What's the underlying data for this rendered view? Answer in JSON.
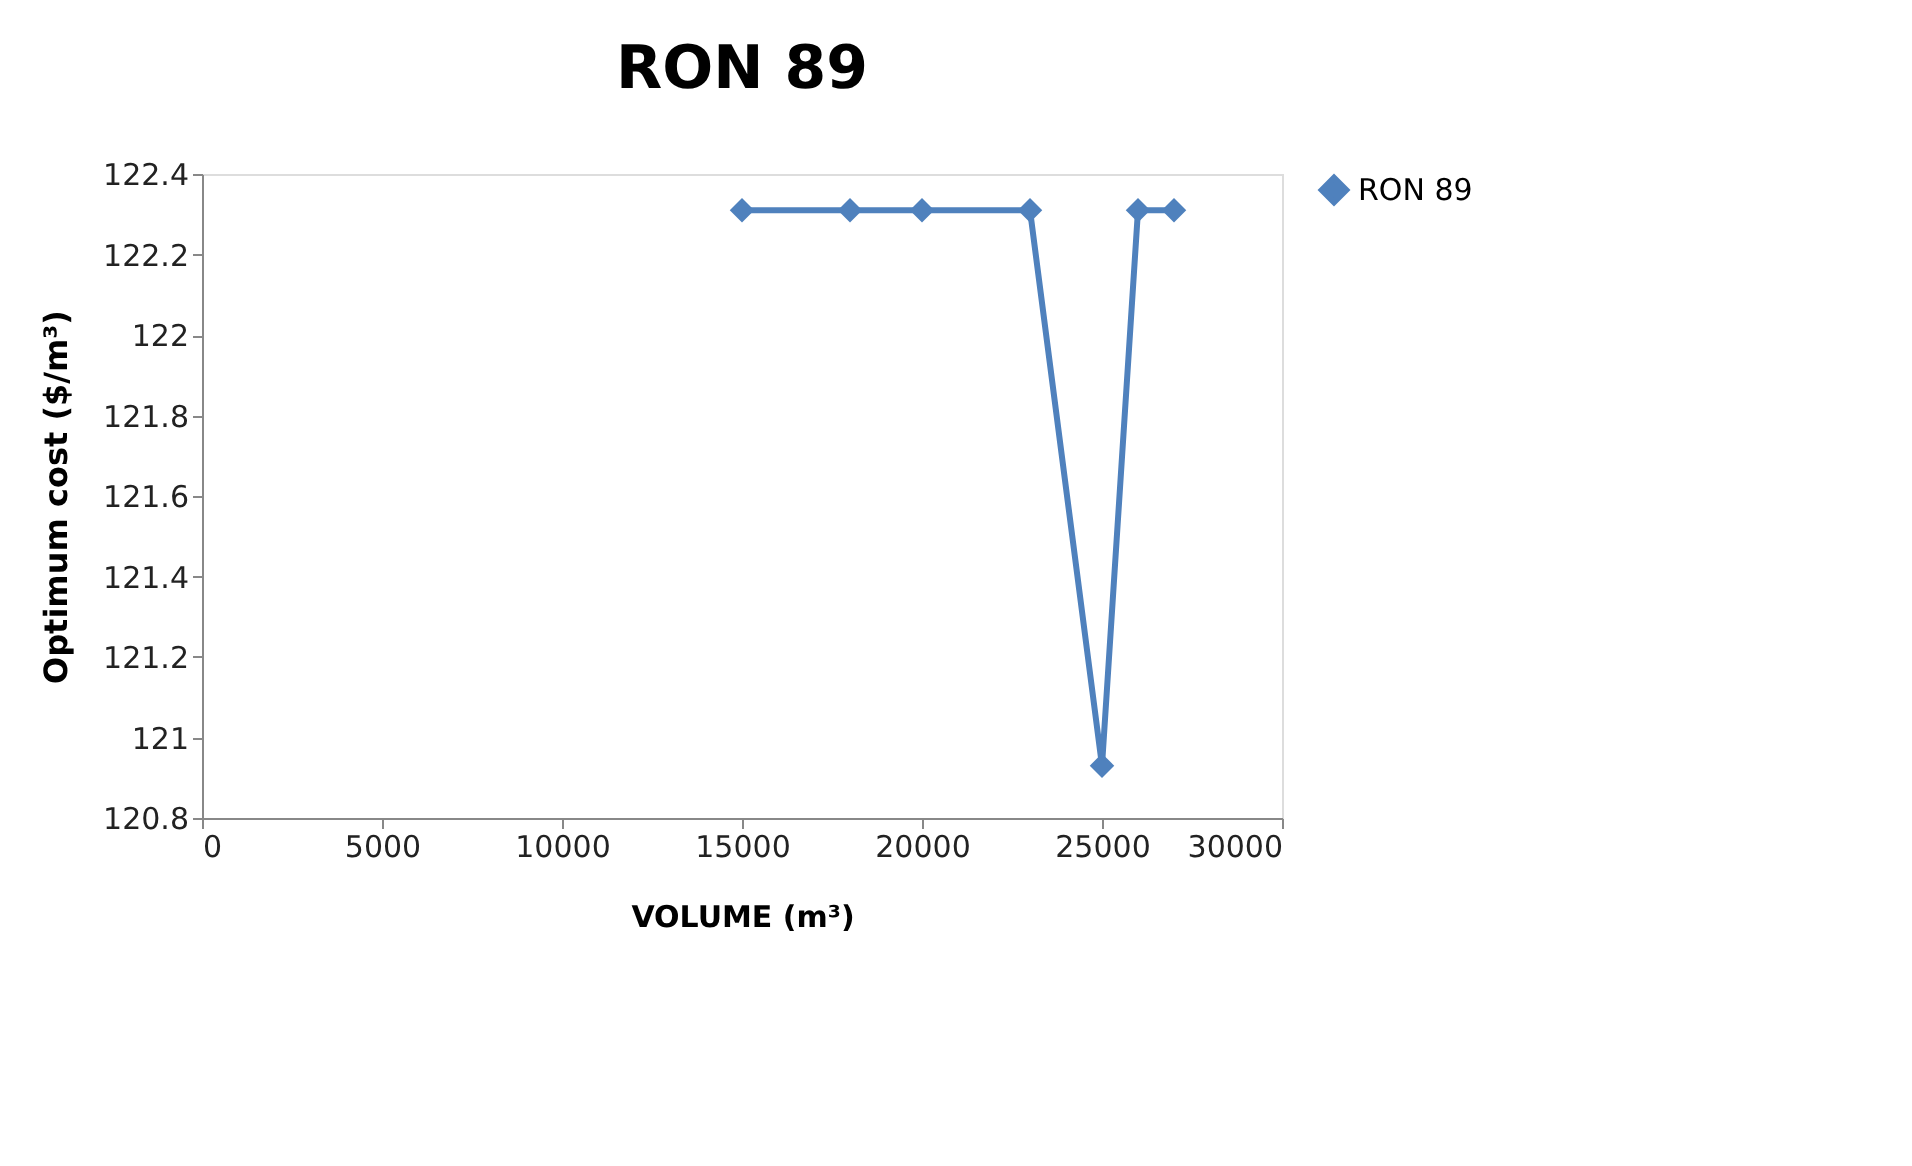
{
  "chart_data": {
    "type": "line",
    "title": "RON 89",
    "xlabel": "VOLUME (m³)",
    "ylabel": "Optimum cost ($/m³)",
    "x": [
      15000,
      18000,
      20000,
      23000,
      25000,
      26000,
      27000
    ],
    "series": [
      {
        "name": "RON 89",
        "color": "#4f81bd",
        "values": [
          122.31,
          122.31,
          122.31,
          122.31,
          120.93,
          122.31,
          122.31
        ]
      }
    ],
    "xlim": [
      0,
      30000
    ],
    "xticks": [
      0,
      5000,
      10000,
      15000,
      20000,
      25000,
      30000
    ],
    "ylim": [
      120.8,
      122.4
    ],
    "yticks": [
      120.8,
      121,
      121.2,
      121.4,
      121.6,
      121.8,
      122,
      122.2,
      122.4
    ],
    "grid": false,
    "legend": "right",
    "marker": "diamond",
    "line_style": "solid"
  }
}
